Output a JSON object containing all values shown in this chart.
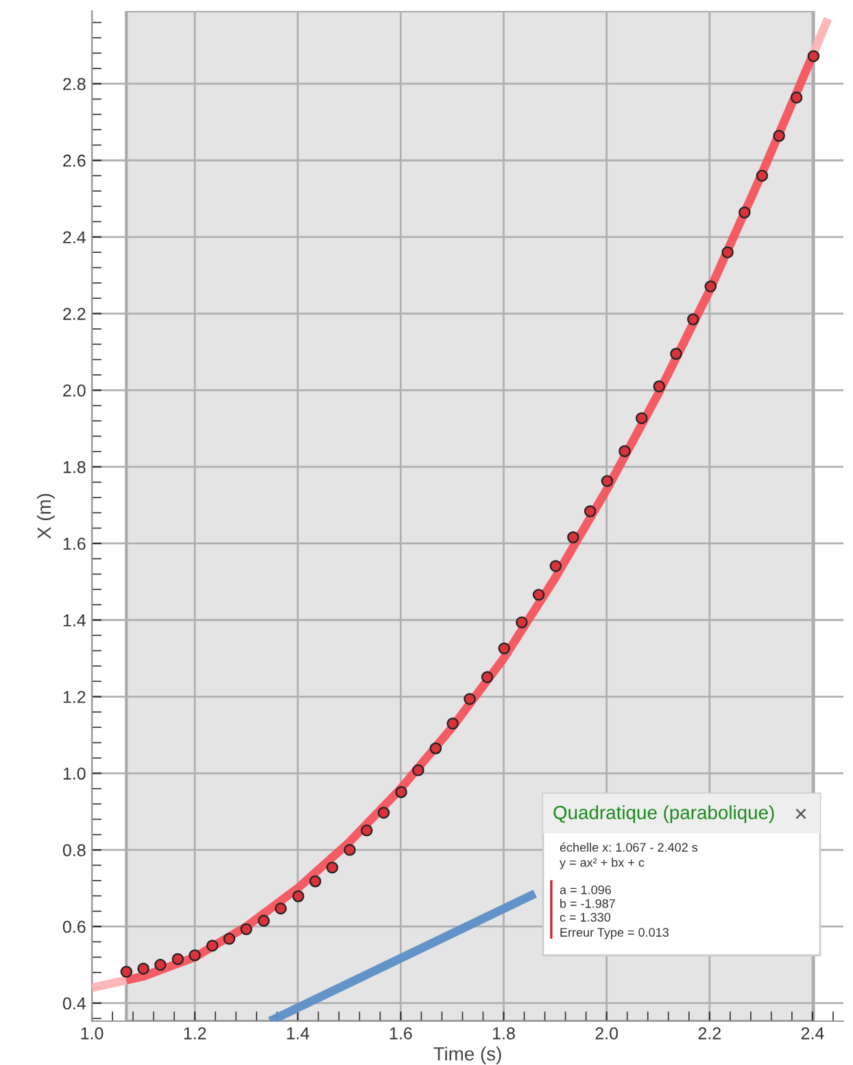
{
  "chart_data": {
    "type": "scatter",
    "xlabel": "Time (s)",
    "ylabel": "X (m)",
    "xlim": [
      1.0,
      2.46
    ],
    "ylim": [
      0.353,
      2.99
    ],
    "xticks": [
      {
        "value": 1.0,
        "label": "1.0"
      },
      {
        "value": 1.04,
        "label": null
      },
      {
        "value": 1.08,
        "label": null
      },
      {
        "value": 1.12,
        "label": null
      },
      {
        "value": 1.16,
        "label": null
      },
      {
        "value": 1.2,
        "label": "1.2"
      },
      {
        "value": 1.24,
        "label": null
      },
      {
        "value": 1.28,
        "label": null
      },
      {
        "value": 1.32,
        "label": null
      },
      {
        "value": 1.36,
        "label": null
      },
      {
        "value": 1.4,
        "label": "1.4"
      },
      {
        "value": 1.44,
        "label": null
      },
      {
        "value": 1.48,
        "label": null
      },
      {
        "value": 1.52,
        "label": null
      },
      {
        "value": 1.56,
        "label": null
      },
      {
        "value": 1.6,
        "label": "1.6"
      },
      {
        "value": 1.64,
        "label": null
      },
      {
        "value": 1.68,
        "label": null
      },
      {
        "value": 1.72,
        "label": null
      },
      {
        "value": 1.76,
        "label": null
      },
      {
        "value": 1.8,
        "label": "1.8"
      },
      {
        "value": 1.84,
        "label": null
      },
      {
        "value": 1.88,
        "label": null
      },
      {
        "value": 1.92,
        "label": null
      },
      {
        "value": 1.96,
        "label": null
      },
      {
        "value": 2.0,
        "label": "2.0"
      },
      {
        "value": 2.04,
        "label": null
      },
      {
        "value": 2.08,
        "label": null
      },
      {
        "value": 2.12,
        "label": null
      },
      {
        "value": 2.16,
        "label": null
      },
      {
        "value": 2.2,
        "label": "2.2"
      },
      {
        "value": 2.24,
        "label": null
      },
      {
        "value": 2.28,
        "label": null
      },
      {
        "value": 2.32,
        "label": null
      },
      {
        "value": 2.36,
        "label": null
      },
      {
        "value": 2.4,
        "label": "2.4"
      },
      {
        "value": 2.44,
        "label": null
      }
    ],
    "yticks": [
      {
        "value": 0.36,
        "label": null
      },
      {
        "value": 0.4,
        "label": "0.4"
      },
      {
        "value": 0.44,
        "label": null
      },
      {
        "value": 0.48,
        "label": null
      },
      {
        "value": 0.52,
        "label": null
      },
      {
        "value": 0.56,
        "label": null
      },
      {
        "value": 0.6,
        "label": "0.6"
      },
      {
        "value": 0.64,
        "label": null
      },
      {
        "value": 0.68,
        "label": null
      },
      {
        "value": 0.72,
        "label": null
      },
      {
        "value": 0.76,
        "label": null
      },
      {
        "value": 0.8,
        "label": "0.8"
      },
      {
        "value": 0.84,
        "label": null
      },
      {
        "value": 0.88,
        "label": null
      },
      {
        "value": 0.92,
        "label": null
      },
      {
        "value": 0.96,
        "label": null
      },
      {
        "value": 1.0,
        "label": "1.0"
      },
      {
        "value": 1.04,
        "label": null
      },
      {
        "value": 1.08,
        "label": null
      },
      {
        "value": 1.12,
        "label": null
      },
      {
        "value": 1.16,
        "label": null
      },
      {
        "value": 1.2,
        "label": "1.2"
      },
      {
        "value": 1.24,
        "label": null
      },
      {
        "value": 1.28,
        "label": null
      },
      {
        "value": 1.32,
        "label": null
      },
      {
        "value": 1.36,
        "label": null
      },
      {
        "value": 1.4,
        "label": "1.4"
      },
      {
        "value": 1.44,
        "label": null
      },
      {
        "value": 1.48,
        "label": null
      },
      {
        "value": 1.52,
        "label": null
      },
      {
        "value": 1.56,
        "label": null
      },
      {
        "value": 1.6,
        "label": "1.6"
      },
      {
        "value": 1.64,
        "label": null
      },
      {
        "value": 1.68,
        "label": null
      },
      {
        "value": 1.72,
        "label": null
      },
      {
        "value": 1.76,
        "label": null
      },
      {
        "value": 1.8,
        "label": "1.8"
      },
      {
        "value": 1.84,
        "label": null
      },
      {
        "value": 1.88,
        "label": null
      },
      {
        "value": 1.92,
        "label": null
      },
      {
        "value": 1.96,
        "label": null
      },
      {
        "value": 2.0,
        "label": "2.0"
      },
      {
        "value": 2.04,
        "label": null
      },
      {
        "value": 2.08,
        "label": null
      },
      {
        "value": 2.12,
        "label": null
      },
      {
        "value": 2.16,
        "label": null
      },
      {
        "value": 2.2,
        "label": "2.2"
      },
      {
        "value": 2.24,
        "label": null
      },
      {
        "value": 2.28,
        "label": null
      },
      {
        "value": 2.32,
        "label": null
      },
      {
        "value": 2.36,
        "label": null
      },
      {
        "value": 2.4,
        "label": "2.4"
      },
      {
        "value": 2.44,
        "label": null
      },
      {
        "value": 2.48,
        "label": null
      },
      {
        "value": 2.52,
        "label": null
      },
      {
        "value": 2.56,
        "label": null
      },
      {
        "value": 2.6,
        "label": "2.6"
      },
      {
        "value": 2.64,
        "label": null
      },
      {
        "value": 2.68,
        "label": null
      },
      {
        "value": 2.72,
        "label": null
      },
      {
        "value": 2.76,
        "label": null
      },
      {
        "value": 2.8,
        "label": "2.8"
      },
      {
        "value": 2.84,
        "label": null
      },
      {
        "value": 2.88,
        "label": null
      },
      {
        "value": 2.92,
        "label": null
      },
      {
        "value": 2.96,
        "label": null
      }
    ],
    "grid": true,
    "marker": "circle",
    "bands": [
      {
        "axis": "x",
        "from": 1.067,
        "to": 2.402,
        "color": "#e4e4e4"
      }
    ],
    "series": [
      {
        "type": "line",
        "marker": "none",
        "color": "#ffb3b6",
        "x": [
          1.0,
          1.067
        ],
        "values": [
          0.44,
          0.46
        ]
      },
      {
        "type": "line",
        "marker": "none",
        "color": "#ffb3b6",
        "x": [
          2.402,
          2.43
        ],
        "values": [
          2.88,
          2.97
        ]
      },
      {
        "type": "line",
        "marker": "none",
        "color": "#f5535c",
        "x": [
          1.067,
          1.1,
          1.2,
          1.3,
          1.4,
          1.5,
          1.6,
          1.7,
          1.8,
          1.9,
          2.0,
          2.1,
          2.2,
          2.3,
          2.402
        ],
        "values": [
          0.46,
          0.47,
          0.52,
          0.6,
          0.7,
          0.82,
          0.96,
          1.12,
          1.3,
          1.51,
          1.74,
          1.99,
          2.26,
          2.56,
          2.88
        ]
      },
      {
        "type": "line",
        "marker": "none",
        "color": "#5b8fc7",
        "x": [
          1.346,
          1.861
        ],
        "values": [
          0.353,
          0.686
        ]
      },
      {
        "color": "#d8333b",
        "x": [
          1.067,
          1.1,
          1.133,
          1.167,
          1.2,
          1.234,
          1.267,
          1.3,
          1.334,
          1.367,
          1.401,
          1.434,
          1.467,
          1.501,
          1.534,
          1.567,
          1.601,
          1.634,
          1.668,
          1.701,
          1.734,
          1.768,
          1.801,
          1.835,
          1.868,
          1.901,
          1.935,
          1.968,
          2.001,
          2.035,
          2.068,
          2.102,
          2.135,
          2.168,
          2.202,
          2.235,
          2.268,
          2.302,
          2.335,
          2.369,
          2.402
        ],
        "values": [
          0.482,
          0.49,
          0.5,
          0.515,
          0.525,
          0.55,
          0.568,
          0.593,
          0.615,
          0.647,
          0.679,
          0.718,
          0.754,
          0.8,
          0.851,
          0.897,
          0.951,
          1.008,
          1.065,
          1.13,
          1.194,
          1.251,
          1.326,
          1.394,
          1.466,
          1.541,
          1.616,
          1.684,
          1.763,
          1.841,
          1.927,
          2.01,
          2.095,
          2.185,
          2.271,
          2.36,
          2.464,
          2.56,
          2.664,
          2.764,
          2.872
        ]
      }
    ],
    "annotations": [
      "Quadratique (parabolique)",
      "×",
      "échelle x: 1.067 - 2.402 s",
      "y = ax² + bx + c",
      "a = 1.096",
      "b = -1.987",
      "c = 1.330",
      "Erreur Type = 0.013"
    ]
  }
}
